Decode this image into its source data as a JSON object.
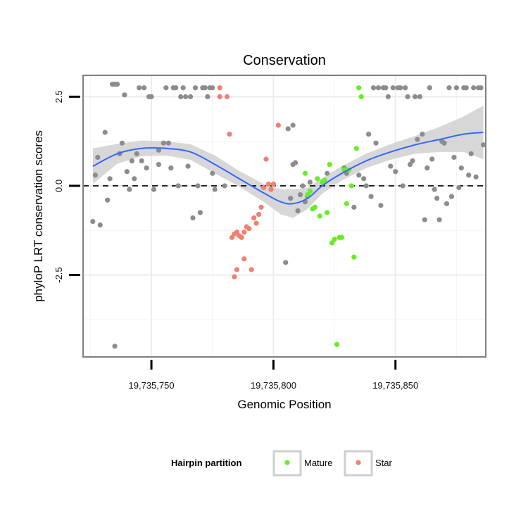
{
  "chart_data": {
    "type": "scatter",
    "title": "Conservation",
    "xlabel": "Genomic Position",
    "ylabel": "phyloP LRT conservation scores",
    "xlim": [
      19735722,
      19735887
    ],
    "ylim": [
      -4.8,
      3.1
    ],
    "x_ticks": [
      19735750,
      19735800,
      19735850
    ],
    "x_tick_labels": [
      "19,735,750",
      "19,735,800",
      "19,735,850"
    ],
    "y_ticks": [
      -2.5,
      0.0,
      2.5
    ],
    "y_tick_labels": [
      "-2.5",
      "0.0",
      "2.5"
    ],
    "reference_line": {
      "y": 0,
      "style": "dashed"
    },
    "grid": true,
    "colors": {
      "other": "#8c8c8c",
      "Mature": "#66ee22",
      "Star": "#f0806f",
      "smooth": "#3366ff",
      "band": "#d0d0d0"
    },
    "legend": {
      "title": "Hairpin partition",
      "position": "bottom",
      "entries": [
        {
          "label": "Mature",
          "group": "Mature"
        },
        {
          "label": "Star",
          "group": "Star"
        }
      ]
    },
    "series": [
      {
        "name": "Other",
        "group": "other",
        "points": [
          [
            19735726,
            -1.0
          ],
          [
            19735727,
            0.3
          ],
          [
            19735728,
            0.8
          ],
          [
            19735729,
            -1.1
          ],
          [
            19735731,
            1.5
          ],
          [
            19735732,
            -0.4
          ],
          [
            19735733,
            0.2
          ],
          [
            19735734,
            2.85
          ],
          [
            19735735,
            2.85
          ],
          [
            19735735,
            -4.5
          ],
          [
            19735736,
            2.85
          ],
          [
            19735737,
            0.9
          ],
          [
            19735738,
            1.2
          ],
          [
            19735739,
            2.55
          ],
          [
            19735740,
            0.4
          ],
          [
            19735741,
            -0.1
          ],
          [
            19735742,
            0.7
          ],
          [
            19735743,
            0.2
          ],
          [
            19735744,
            0.9
          ],
          [
            19735745,
            2.75
          ],
          [
            19735746,
            0.7
          ],
          [
            19735747,
            2.75
          ],
          [
            19735748,
            0.5
          ],
          [
            19735749,
            2.5
          ],
          [
            19735750,
            2.5
          ],
          [
            19735751,
            -0.1
          ],
          [
            19735753,
            0.6
          ],
          [
            19735753,
            1.0
          ],
          [
            19735755,
            1.2
          ],
          [
            19735756,
            2.75
          ],
          [
            19735757,
            1.2
          ],
          [
            19735758,
            0.5
          ],
          [
            19735759,
            2.75
          ],
          [
            19735760,
            2.75
          ],
          [
            19735761,
            0.0
          ],
          [
            19735762,
            2.5
          ],
          [
            19735763,
            2.75
          ],
          [
            19735764,
            2.5
          ],
          [
            19735765,
            0.55
          ],
          [
            19735766,
            2.5
          ],
          [
            19735767,
            -0.9
          ],
          [
            19735768,
            2.75
          ],
          [
            19735769,
            0.0
          ],
          [
            19735770,
            -0.75
          ],
          [
            19735771,
            2.75
          ],
          [
            19735772,
            2.75
          ],
          [
            19735773,
            2.5
          ],
          [
            19735774,
            2.75
          ],
          [
            19735775,
            2.75
          ],
          [
            19735775,
            0.35
          ],
          [
            19735776,
            -0.1
          ],
          [
            19735780,
            0.0
          ],
          [
            19735805,
            -2.15
          ],
          [
            19735806,
            1.6
          ],
          [
            19735807,
            -0.35
          ],
          [
            19735808,
            0.6
          ],
          [
            19735808,
            1.7
          ],
          [
            19735809,
            0.65
          ],
          [
            19735810,
            -0.7
          ],
          [
            19735811,
            -0.25
          ],
          [
            19735812,
            0.0
          ],
          [
            19735813,
            -0.45
          ],
          [
            19735814,
            -0.3
          ],
          [
            19735815,
            0.1
          ],
          [
            19735820,
            0.1
          ],
          [
            19735822,
            0.35
          ],
          [
            19735829,
            0.5
          ],
          [
            19735830,
            0.35
          ],
          [
            19735833,
            -0.6
          ],
          [
            19735835,
            0.3
          ],
          [
            19735837,
            0.2
          ],
          [
            19735838,
            0.0
          ],
          [
            19735839,
            1.45
          ],
          [
            19735840,
            -0.3
          ],
          [
            19735841,
            2.75
          ],
          [
            19735842,
            1.2
          ],
          [
            19735843,
            2.75
          ],
          [
            19735844,
            -0.55
          ],
          [
            19735845,
            2.75
          ],
          [
            19735846,
            2.75
          ],
          [
            19735847,
            2.5
          ],
          [
            19735848,
            0.55
          ],
          [
            19735849,
            2.75
          ],
          [
            19735850,
            0.4
          ],
          [
            19735851,
            2.75
          ],
          [
            19735852,
            2.75
          ],
          [
            19735853,
            0.0
          ],
          [
            19735854,
            2.75
          ],
          [
            19735855,
            2.5
          ],
          [
            19735856,
            0.6
          ],
          [
            19735857,
            0.7
          ],
          [
            19735858,
            2.5
          ],
          [
            19735859,
            1.3
          ],
          [
            19735860,
            2.5
          ],
          [
            19735861,
            1.45
          ],
          [
            19735862,
            -0.95
          ],
          [
            19735863,
            0.5
          ],
          [
            19735864,
            2.75
          ],
          [
            19735865,
            0.75
          ],
          [
            19735866,
            -0.1
          ],
          [
            19735867,
            -0.35
          ],
          [
            19735868,
            -0.95
          ],
          [
            19735869,
            1.25
          ],
          [
            19735870,
            1.2
          ],
          [
            19735871,
            -0.5
          ],
          [
            19735872,
            2.75
          ],
          [
            19735873,
            -0.3
          ],
          [
            19735874,
            0.8
          ],
          [
            19735875,
            2.75
          ],
          [
            19735876,
            -0.05
          ],
          [
            19735877,
            0.5
          ],
          [
            19735878,
            2.75
          ],
          [
            19735879,
            2.75
          ],
          [
            19735880,
            0.3
          ],
          [
            19735881,
            0.9
          ],
          [
            19735882,
            2.75
          ],
          [
            19735883,
            0.25
          ],
          [
            19735884,
            2.75
          ],
          [
            19735885,
            2.75
          ],
          [
            19735886,
            1.15
          ]
        ]
      },
      {
        "name": "Star",
        "group": "Star",
        "points": [
          [
            19735778,
            2.75
          ],
          [
            19735778,
            2.5
          ],
          [
            19735781,
            2.5
          ],
          [
            19735782,
            1.45
          ],
          [
            19735783,
            -1.45
          ],
          [
            19735784,
            -1.35
          ],
          [
            19735784,
            -2.55
          ],
          [
            19735785,
            -1.3
          ],
          [
            19735785,
            -2.35
          ],
          [
            19735786,
            -1.4
          ],
          [
            19735787,
            -1.45
          ],
          [
            19735788,
            -2.05
          ],
          [
            19735788,
            -1.3
          ],
          [
            19735789,
            -1.15
          ],
          [
            19735790,
            -1.2
          ],
          [
            19735791,
            -2.35
          ],
          [
            19735792,
            -0.9
          ],
          [
            19735793,
            -1.05
          ],
          [
            19735794,
            -0.8
          ],
          [
            19735795,
            -0.6
          ],
          [
            19735796,
            -0.05
          ],
          [
            19735797,
            0.75
          ],
          [
            19735798,
            0.05
          ],
          [
            19735799,
            -0.1
          ],
          [
            19735800,
            0.05
          ],
          [
            19735802,
            1.7
          ]
        ]
      },
      {
        "name": "Mature",
        "group": "Mature",
        "points": [
          [
            19735813,
            0.35
          ],
          [
            19735814,
            -0.25
          ],
          [
            19735815,
            -0.15
          ],
          [
            19735816,
            -0.65
          ],
          [
            19735817,
            -0.6
          ],
          [
            19735818,
            0.2
          ],
          [
            19735819,
            -0.85
          ],
          [
            19735820,
            0.1
          ],
          [
            19735821,
            0.15
          ],
          [
            19735822,
            -0.75
          ],
          [
            19735823,
            0.6
          ],
          [
            19735824,
            -1.6
          ],
          [
            19735825,
            -1.5
          ],
          [
            19735826,
            -4.45
          ],
          [
            19735827,
            -1.45
          ],
          [
            19735828,
            -1.45
          ],
          [
            19735829,
            0.45
          ],
          [
            19735830,
            -0.5
          ],
          [
            19735831,
            0.45
          ],
          [
            19735832,
            0.0
          ],
          [
            19735833,
            -2.0
          ],
          [
            19735834,
            1.05
          ],
          [
            19735835,
            2.75
          ],
          [
            19735836,
            2.5
          ]
        ]
      }
    ],
    "smooth": {
      "x": [
        19735726,
        19735736,
        19735746,
        19735756,
        19735766,
        19735776,
        19735786,
        19735796,
        19735803,
        19735808,
        19735814,
        19735820,
        19735828,
        19735838,
        19735848,
        19735858,
        19735868,
        19735878,
        19735886
      ],
      "y": [
        0.55,
        0.9,
        1.05,
        1.05,
        0.95,
        0.6,
        0.2,
        -0.2,
        -0.45,
        -0.5,
        -0.35,
        0.0,
        0.35,
        0.7,
        0.95,
        1.15,
        1.3,
        1.45,
        1.5
      ],
      "band": [
        0.5,
        0.28,
        0.22,
        0.2,
        0.22,
        0.25,
        0.22,
        0.25,
        0.35,
        0.4,
        0.3,
        0.22,
        0.2,
        0.2,
        0.22,
        0.25,
        0.35,
        0.5,
        0.75
      ]
    }
  }
}
